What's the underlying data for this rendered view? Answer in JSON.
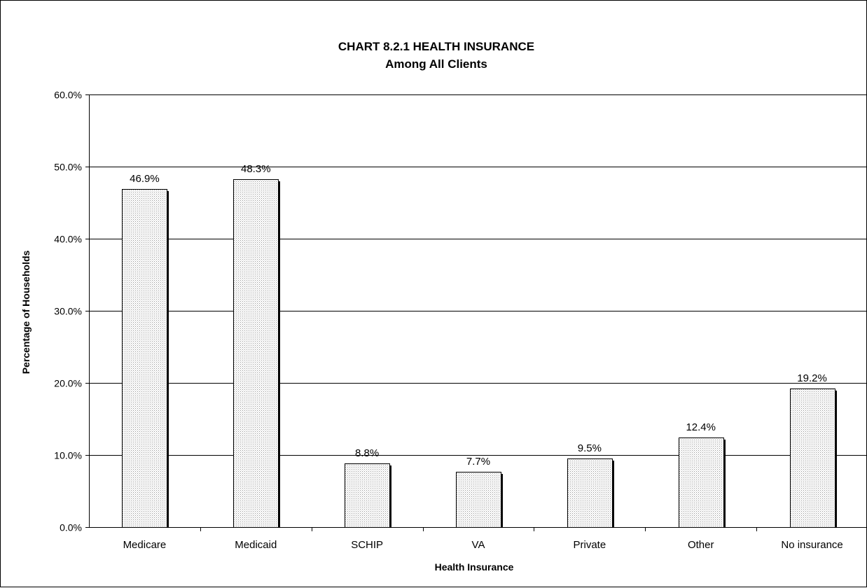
{
  "chart_data": {
    "type": "bar",
    "title": "CHART 8.2.1     HEALTH INSURANCE",
    "subtitle": "Among All Clients",
    "xlabel": "Health Insurance",
    "ylabel": "Percentage of Households",
    "categories": [
      "Medicare",
      "Medicaid",
      "SCHIP",
      "VA",
      "Private",
      "Other",
      "No insurance"
    ],
    "values": [
      46.9,
      48.3,
      8.8,
      7.7,
      9.5,
      12.4,
      19.2
    ],
    "data_labels": [
      "46.9%",
      "48.3%",
      "8.8%",
      "7.7%",
      "9.5%",
      "12.4%",
      "19.2%"
    ],
    "ylim": [
      0,
      60
    ],
    "yticks": [
      0,
      10,
      20,
      30,
      40,
      50,
      60
    ],
    "ytick_labels": [
      "0.0%",
      "10.0%",
      "20.0%",
      "30.0%",
      "40.0%",
      "50.0%",
      "60.0%"
    ],
    "grid": true,
    "legend": false,
    "colors": {
      "bar_fill_base": "#ffffff",
      "bar_fill_dots": "#9a9a9a",
      "bar_shadow": "#000000",
      "gridline": "#000000",
      "frame": "#000000"
    }
  }
}
